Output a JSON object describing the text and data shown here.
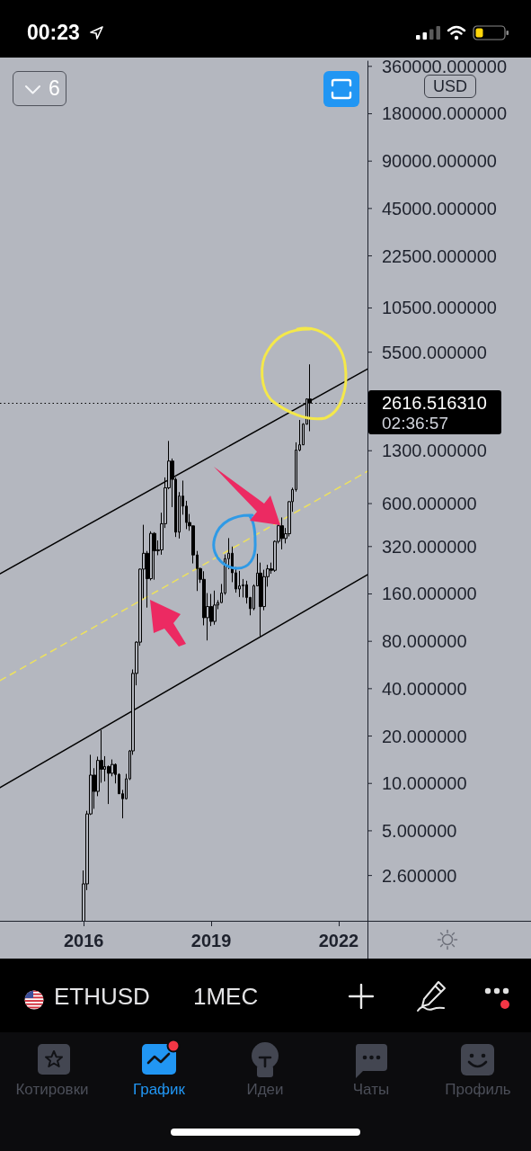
{
  "chart_data": {
    "type": "candlestick",
    "title": "ETHUSD",
    "subtitle": "1МЕС",
    "ylabel": "USD",
    "x": [
      "2016-01",
      "2016-02",
      "2016-03",
      "2016-04",
      "2016-05",
      "2016-06",
      "2016-07",
      "2016-08",
      "2016-09",
      "2016-10",
      "2016-11",
      "2016-12",
      "2017-01",
      "2017-02",
      "2017-03",
      "2017-04",
      "2017-05",
      "2017-06",
      "2017-07",
      "2017-08",
      "2017-09",
      "2017-10",
      "2017-11",
      "2017-12",
      "2018-01",
      "2018-02",
      "2018-03",
      "2018-04",
      "2018-05",
      "2018-06",
      "2018-07",
      "2018-08",
      "2018-09",
      "2018-10",
      "2018-11",
      "2018-12",
      "2019-01",
      "2019-02",
      "2019-03",
      "2019-04",
      "2019-05",
      "2019-06",
      "2019-07",
      "2019-08",
      "2019-09",
      "2019-10",
      "2019-11",
      "2019-12",
      "2020-01",
      "2020-02",
      "2020-03",
      "2020-04",
      "2020-05",
      "2020-06",
      "2020-07",
      "2020-08",
      "2020-09",
      "2020-10",
      "2020-11",
      "2020-12",
      "2021-01",
      "2021-02",
      "2021-03",
      "2021-04",
      "2021-05"
    ],
    "ohlc": [
      [
        0.95,
        2.8,
        0.93,
        2.3
      ],
      [
        2.3,
        6.7,
        2.1,
        6.4
      ],
      [
        6.4,
        15.2,
        6.3,
        11.3
      ],
      [
        11.3,
        12.5,
        6.9,
        8.9
      ],
      [
        8.9,
        14.8,
        8.3,
        14.0
      ],
      [
        14.0,
        21.8,
        10.1,
        12.3
      ],
      [
        12.3,
        14.9,
        10.3,
        12.8
      ],
      [
        12.8,
        13.0,
        7.4,
        11.6
      ],
      [
        11.6,
        14.2,
        11.1,
        13.2
      ],
      [
        13.2,
        13.4,
        10.0,
        11.4
      ],
      [
        11.4,
        11.6,
        8.6,
        8.6
      ],
      [
        8.6,
        9.1,
        6.0,
        8.0
      ],
      [
        8.0,
        11.5,
        7.9,
        10.7
      ],
      [
        10.7,
        16.3,
        10.5,
        16.1
      ],
      [
        16.1,
        53,
        15.2,
        50
      ],
      [
        50,
        80,
        42,
        79
      ],
      [
        79,
        232,
        75,
        230
      ],
      [
        230,
        440,
        150,
        290
      ],
      [
        290,
        300,
        131,
        200
      ],
      [
        200,
        400,
        195,
        388
      ],
      [
        388,
        395,
        197,
        301
      ],
      [
        301,
        350,
        282,
        305
      ],
      [
        305,
        525,
        284,
        447
      ],
      [
        447,
        880,
        420,
        756
      ],
      [
        756,
        1500,
        740,
        1118
      ],
      [
        1118,
        1160,
        570,
        855
      ],
      [
        855,
        880,
        368,
        395
      ],
      [
        395,
        710,
        360,
        670
      ],
      [
        670,
        840,
        510,
        578
      ],
      [
        578,
        625,
        413,
        455
      ],
      [
        455,
        515,
        403,
        433
      ],
      [
        433,
        435,
        250,
        283
      ],
      [
        283,
        300,
        167,
        232
      ],
      [
        232,
        235,
        188,
        198
      ],
      [
        198,
        223,
        101,
        113
      ],
      [
        113,
        162,
        81,
        133
      ],
      [
        133,
        160,
        100,
        107
      ],
      [
        107,
        168,
        102,
        136
      ],
      [
        136,
        146,
        128,
        141
      ],
      [
        141,
        185,
        140,
        162
      ],
      [
        162,
        285,
        158,
        268
      ],
      [
        268,
        362,
        230,
        290
      ],
      [
        290,
        320,
        190,
        218
      ],
      [
        218,
        237,
        163,
        172
      ],
      [
        172,
        224,
        153,
        180
      ],
      [
        180,
        199,
        152,
        183
      ],
      [
        183,
        194,
        139,
        152
      ],
      [
        152,
        153,
        117,
        129
      ],
      [
        129,
        184,
        126,
        180
      ],
      [
        180,
        288,
        180,
        217
      ],
      [
        217,
        253,
        86,
        133
      ],
      [
        133,
        228,
        126,
        206
      ],
      [
        206,
        245,
        178,
        231
      ],
      [
        231,
        253,
        215,
        226
      ],
      [
        226,
        350,
        221,
        345
      ],
      [
        345,
        444,
        335,
        434
      ],
      [
        434,
        490,
        307,
        360
      ],
      [
        360,
        420,
        335,
        386
      ],
      [
        386,
        622,
        371,
        617
      ],
      [
        617,
        757,
        532,
        737
      ],
      [
        737,
        1470,
        715,
        1313
      ],
      [
        1313,
        2040,
        1290,
        1418
      ],
      [
        1418,
        1945,
        1410,
        1918
      ],
      [
        1918,
        2800,
        1905,
        2773
      ],
      [
        2773,
        4600,
        1730,
        2616.51631
      ]
    ],
    "color": "#000000",
    "series": [
      {
        "type": "line",
        "x": [
          "2014-01-11",
          "2022-09-06"
        ],
        "values": [
          215,
          4300
        ],
        "color": "#000000"
      },
      {
        "type": "line",
        "x": [
          "2014-01-11",
          "2022-09-06"
        ],
        "values": [
          9.4,
          212
        ],
        "color": "#000000"
      },
      {
        "type": "line",
        "x": [
          "2014-01-11",
          "2022-09-06"
        ],
        "values": [
          45,
          962
        ],
        "color": "#ede15e",
        "line_style": "dashed"
      }
    ],
    "log": true,
    "xlim": [
      "2014-01-11",
      "2022-09-06"
    ],
    "xticks": [
      "2016",
      "2019",
      "2022"
    ],
    "ylim": [
      1.34,
      388600
    ],
    "yticks": [
      {
        "value": 2.6,
        "label": "2.600000"
      },
      {
        "value": 5,
        "label": "5.000000"
      },
      {
        "value": 10,
        "label": "10.000000"
      },
      {
        "value": 20,
        "label": "20.000000"
      },
      {
        "value": 40,
        "label": "40.000000"
      },
      {
        "value": 80,
        "label": "80.000000"
      },
      {
        "value": 160,
        "label": "160.000000"
      },
      {
        "value": 320,
        "label": "320.000000"
      },
      {
        "value": 600,
        "label": "600.000000"
      },
      {
        "value": 1300,
        "label": "1300.000000"
      },
      {
        "value": 5500,
        "label": "5500.000000"
      },
      {
        "value": 10500,
        "label": "10500.000000"
      },
      {
        "value": 22500,
        "label": "22500.000000"
      },
      {
        "value": 45000,
        "label": "45000.000000"
      },
      {
        "value": 90000,
        "label": "90000.000000"
      },
      {
        "value": 180000,
        "label": "180000.000000"
      },
      {
        "value": 360000,
        "label": "360000.000000"
      }
    ],
    "ref_lines": [
      {
        "axis": "y",
        "value": 2616.51631,
        "label": "2616.516310",
        "color": "#000000",
        "line_style": "dotted"
      }
    ],
    "annotations": [
      "02:36:57",
      "00:23",
      "6",
      "Котировки",
      "График",
      "Идеи",
      "Чаты",
      "Профиль"
    ]
  }
}
